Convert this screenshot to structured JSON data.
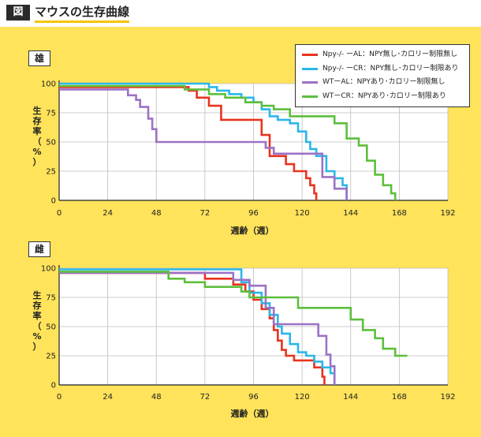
{
  "header": {
    "badge": "図",
    "title": "マウスの生存曲線"
  },
  "legend": [
    {
      "label": "Npy-/- ーAL：NPY無し･カロリー制限無し",
      "color": "#e8331f"
    },
    {
      "label": "Npy-/- ーCR：NPY無し･カロリー制限あり",
      "color": "#2ab7e8"
    },
    {
      "label": "WTーAL：NPYあり･カロリー制限無し",
      "color": "#9b72c6"
    },
    {
      "label": "WTーCR：NPYあり･カロリー制限あり",
      "color": "#5cbf3c"
    }
  ],
  "chart_data": [
    {
      "type": "line",
      "panel_label": "雄",
      "xlabel": "週齢（週）",
      "ylabel": "生存率（%）",
      "xlim": [
        0,
        192
      ],
      "ylim": [
        0,
        100
      ],
      "xticks": [
        0,
        24,
        48,
        72,
        96,
        120,
        144,
        168,
        192
      ],
      "yticks": [
        0,
        25,
        50,
        75,
        100
      ],
      "grid": true,
      "series": [
        {
          "name": "Npy-/- ーAL：NPY無し･カロリー制限無し",
          "color": "#e8331f",
          "x": [
            0,
            62,
            64,
            68,
            74,
            80,
            96,
            100,
            104,
            112,
            116,
            122,
            124,
            126,
            127
          ],
          "y": [
            97,
            97,
            94,
            88,
            81,
            69,
            69,
            56,
            38,
            31,
            25,
            19,
            13,
            6,
            0
          ]
        },
        {
          "name": "Npy-/- ーCR：NPY無し･カロリー制限あり",
          "color": "#2ab7e8",
          "x": [
            0,
            72,
            74,
            78,
            84,
            90,
            96,
            100,
            104,
            108,
            114,
            118,
            122,
            124,
            127,
            132,
            136,
            140,
            142
          ],
          "y": [
            100,
            100,
            97,
            94,
            91,
            88,
            84,
            78,
            72,
            69,
            66,
            59,
            50,
            44,
            38,
            25,
            19,
            13,
            0
          ]
        },
        {
          "name": "WTーAL：NPYあり･カロリー制限無し",
          "color": "#9b72c6",
          "x": [
            0,
            30,
            34,
            38,
            40,
            44,
            46,
            48,
            96,
            102,
            106,
            124,
            130,
            136,
            140,
            142
          ],
          "y": [
            95,
            95,
            90,
            86,
            80,
            70,
            61,
            50,
            50,
            45,
            40,
            40,
            20,
            10,
            10,
            0
          ]
        },
        {
          "name": "WTーCR：NPYあり･カロリー制限あり",
          "color": "#5cbf3c",
          "x": [
            0,
            40,
            62,
            74,
            82,
            92,
            100,
            106,
            114,
            130,
            136,
            142,
            148,
            152,
            156,
            160,
            164,
            166
          ],
          "y": [
            98,
            98,
            95,
            91,
            88,
            84,
            81,
            78,
            72,
            72,
            66,
            53,
            47,
            34,
            22,
            13,
            6,
            0
          ]
        }
      ]
    },
    {
      "type": "line",
      "panel_label": "雌",
      "xlabel": "週齢（週）",
      "ylabel": "生存率（%）",
      "xlim": [
        0,
        192
      ],
      "ylim": [
        0,
        100
      ],
      "xticks": [
        0,
        24,
        48,
        72,
        96,
        120,
        144,
        168,
        192
      ],
      "yticks": [
        0,
        25,
        50,
        75,
        100
      ],
      "grid": true,
      "series": [
        {
          "name": "Npy-/- ーAL：NPY無し･カロリー制限無し",
          "color": "#e8331f",
          "x": [
            0,
            70,
            72,
            86,
            92,
            96,
            100,
            104,
            106,
            108,
            110,
            112,
            116,
            126,
            130,
            131
          ],
          "y": [
            96,
            96,
            91,
            86,
            80,
            73,
            65,
            57,
            47,
            38,
            30,
            25,
            21,
            15,
            7,
            0
          ]
        },
        {
          "name": "Npy-/- ーCR：NPY無し･カロリー制限あり",
          "color": "#2ab7e8",
          "x": [
            0,
            88,
            90,
            94,
            100,
            104,
            108,
            110,
            114,
            118,
            122,
            126,
            130,
            134,
            136
          ],
          "y": [
            99,
            99,
            88,
            79,
            70,
            60,
            50,
            44,
            35,
            28,
            25,
            20,
            15,
            10,
            0
          ]
        },
        {
          "name": "WTーAL：NPYあり･カロリー制限無し",
          "color": "#9b72c6",
          "x": [
            0,
            76,
            86,
            94,
            102,
            106,
            112,
            128,
            132,
            134,
            136
          ],
          "y": [
            96,
            96,
            90,
            85,
            66,
            52,
            52,
            42,
            26,
            16,
            0
          ]
        },
        {
          "name": "WTーCR：NPYあり･カロリー制限あり",
          "color": "#5cbf3c",
          "x": [
            0,
            48,
            54,
            62,
            72,
            82,
            90,
            94,
            100,
            106,
            112,
            118,
            136,
            144,
            150,
            156,
            160,
            166,
            172
          ],
          "y": [
            97,
            97,
            91,
            88,
            84,
            84,
            80,
            75,
            75,
            75,
            75,
            66,
            66,
            56,
            47,
            40,
            31,
            25,
            25
          ]
        }
      ]
    }
  ]
}
